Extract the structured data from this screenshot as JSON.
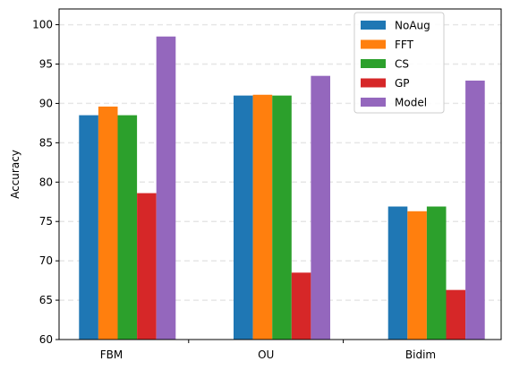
{
  "chart_data": {
    "type": "bar",
    "title": "",
    "xlabel": "",
    "ylabel": "Accuracy",
    "categories": [
      "FBM",
      "OU",
      "Bidim"
    ],
    "ylim": [
      60,
      102
    ],
    "yticks": [
      60,
      65,
      70,
      75,
      80,
      85,
      90,
      95,
      100
    ],
    "grid": "horizontal-dashed",
    "legend_position": "top-right",
    "series": [
      {
        "name": "NoAug",
        "color": "#1f77b4",
        "values": [
          88.5,
          91.0,
          76.9
        ]
      },
      {
        "name": "FFT",
        "color": "#ff7f0e",
        "values": [
          89.6,
          91.1,
          76.3
        ]
      },
      {
        "name": "CS",
        "color": "#2ca02c",
        "values": [
          88.5,
          91.0,
          76.9
        ]
      },
      {
        "name": "GP",
        "color": "#d62728",
        "values": [
          78.6,
          68.5,
          66.3
        ]
      },
      {
        "name": "Model",
        "color": "#9467bd",
        "values": [
          98.5,
          93.5,
          92.9
        ]
      }
    ]
  }
}
